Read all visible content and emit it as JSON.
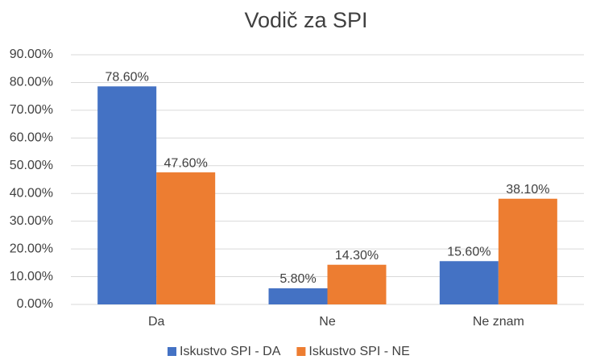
{
  "chart_data": {
    "type": "bar",
    "title": "Vodič za SPI",
    "categories": [
      "Da",
      "Ne",
      "Ne znam"
    ],
    "series": [
      {
        "name": "Iskustvo SPI - DA",
        "color": "#4472c4",
        "values": [
          78.6,
          5.8,
          15.6
        ],
        "value_labels": [
          "78.60%",
          "5.80%",
          "15.60%"
        ]
      },
      {
        "name": "Iskustvo SPI - NE",
        "color": "#ed7d31",
        "values": [
          47.6,
          14.3,
          38.1
        ],
        "value_labels": [
          "47.60%",
          "14.30%",
          "38.10%"
        ]
      }
    ],
    "ylim": [
      0,
      90
    ],
    "yticks": [
      {
        "value": 0,
        "label": "0.00%"
      },
      {
        "value": 10,
        "label": "10.00%"
      },
      {
        "value": 20,
        "label": "20.00%"
      },
      {
        "value": 30,
        "label": "30.00%"
      },
      {
        "value": 40,
        "label": "40.00%"
      },
      {
        "value": 50,
        "label": "50.00%"
      },
      {
        "value": 60,
        "label": "60.00%"
      },
      {
        "value": 70,
        "label": "70.00%"
      },
      {
        "value": 80,
        "label": "80.00%"
      },
      {
        "value": 90,
        "label": "90.00%"
      }
    ],
    "grid": true,
    "legend": "bottom"
  }
}
